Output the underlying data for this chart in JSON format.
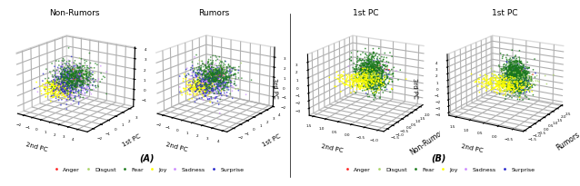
{
  "figure_label_A": "(A)",
  "figure_label_B": "(B)",
  "panel_A_titles": [
    "Non-Rumors",
    "Rumors"
  ],
  "panel_B_subtitles": [
    "Non-Rumors",
    "Rumors"
  ],
  "panel_A_xlabel": "2nd PC",
  "panel_A_ylabel": "1st PC",
  "panel_A_zlabel": "3rd PC",
  "panel_B_top_label": "1st PC",
  "panel_B_left_label": "2nd PC",
  "panel_B_zlabel": "3rd PC",
  "emotions": [
    "Anger",
    "Disgust",
    "Fear",
    "Joy",
    "Sadness",
    "Surprise"
  ],
  "emotion_colors": [
    "#ff2222",
    "#aad46a",
    "#1a7a1a",
    "#ffff00",
    "#cc88ff",
    "#2222cc"
  ],
  "background_color": "#ffffff",
  "font_size_title": 6.5,
  "font_size_label": 5.0,
  "font_size_legend": 5.5,
  "font_size_caption": 7,
  "marker_size": 1.5,
  "n_pts_anger": 30,
  "n_pts_disgust": 120,
  "n_pts_fear": 500,
  "n_pts_joy": 300,
  "n_pts_sadness": 250,
  "n_pts_surprise": 300
}
